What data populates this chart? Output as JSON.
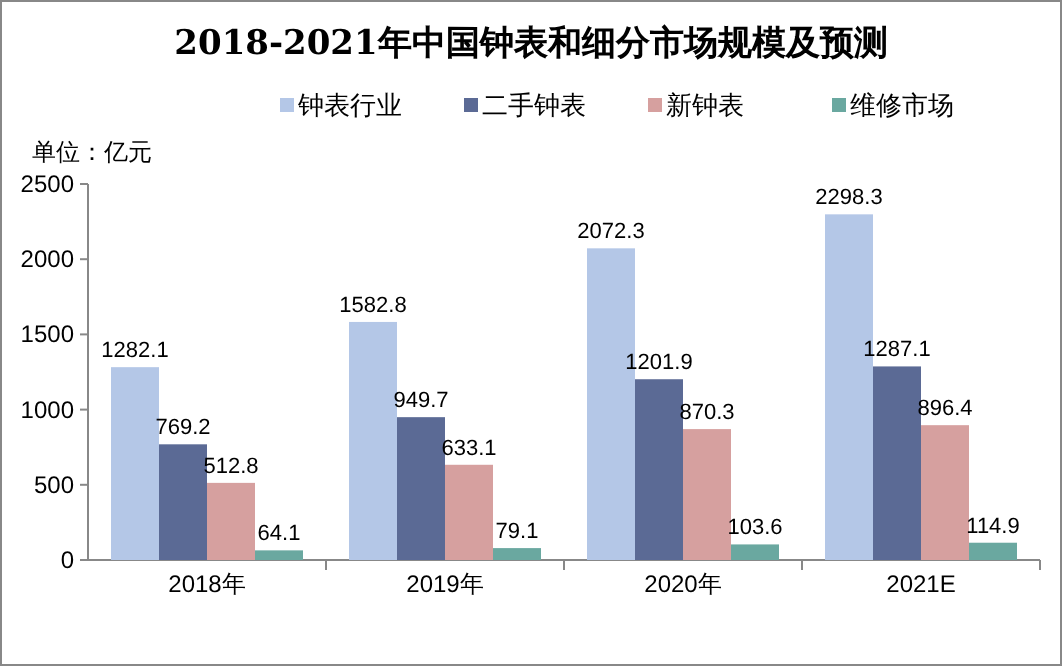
{
  "chart_data": {
    "type": "bar",
    "title": "2018-2021年中国钟表和细分市场规模及预测",
    "ylabel": "单位：亿元",
    "categories": [
      "2018年",
      "2019年",
      "2020年",
      "2021E"
    ],
    "series": [
      {
        "name": "钟表行业",
        "color": "#b4c7e7",
        "values": [
          1282.1,
          1582.8,
          2072.3,
          2298.3
        ]
      },
      {
        "name": "二手钟表",
        "color": "#5b6a95",
        "values": [
          769.2,
          949.7,
          1201.9,
          1287.1
        ]
      },
      {
        "name": "新钟表",
        "color": "#d6a09f",
        "values": [
          512.8,
          633.1,
          870.3,
          896.4
        ]
      },
      {
        "name": "维修市场",
        "color": "#6aa8a0",
        "values": [
          64.1,
          79.1,
          103.6,
          114.9
        ]
      }
    ],
    "ylim": [
      0,
      2500
    ],
    "yticks": [
      0,
      500,
      1000,
      1500,
      2000,
      2500
    ],
    "data_labels": true,
    "legend": "top",
    "grid": false
  }
}
